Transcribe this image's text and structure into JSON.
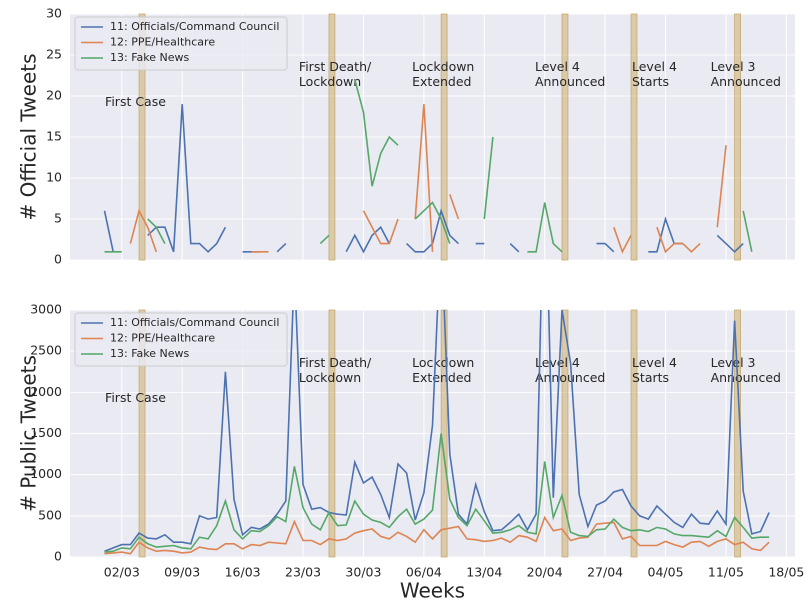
{
  "chart_data": [
    {
      "type": "line",
      "ylabel": "# Official Tweets",
      "x": [
        "29/02",
        "01/03",
        "02/03",
        "03/03",
        "04/03",
        "05/03",
        "06/03",
        "07/03",
        "08/03",
        "09/03",
        "10/03",
        "11/03",
        "12/03",
        "13/03",
        "14/03",
        "15/03",
        "16/03",
        "17/03",
        "18/03",
        "19/03",
        "20/03",
        "21/03",
        "22/03",
        "23/03",
        "24/03",
        "25/03",
        "26/03",
        "27/03",
        "28/03",
        "29/03",
        "30/03",
        "31/03",
        "01/04",
        "02/04",
        "03/04",
        "04/04",
        "05/04",
        "06/04",
        "07/04",
        "08/04",
        "09/04",
        "10/04",
        "11/04",
        "12/04",
        "13/04",
        "14/04",
        "15/04",
        "16/04",
        "17/04",
        "18/04",
        "19/04",
        "20/04",
        "21/04",
        "22/04",
        "23/04",
        "24/04",
        "25/04",
        "26/04",
        "27/04",
        "28/04",
        "29/04",
        "30/04",
        "01/05",
        "02/05",
        "03/05",
        "04/05",
        "05/05",
        "06/05",
        "07/05",
        "08/05",
        "09/05",
        "10/05",
        "11/05",
        "12/05",
        "13/05",
        "14/05",
        "15/05",
        "16/05"
      ],
      "series": [
        {
          "name": "11: Officials/Command Council",
          "color": "#4c72b0",
          "values": [
            6,
            1,
            null,
            null,
            null,
            3,
            4,
            4,
            1,
            19,
            2,
            2,
            1,
            2,
            4,
            null,
            1,
            1,
            1,
            null,
            1,
            2,
            null,
            null,
            null,
            null,
            null,
            null,
            1,
            3,
            1,
            3,
            4,
            2,
            null,
            2,
            1,
            1,
            2,
            6,
            3,
            2,
            null,
            2,
            2,
            null,
            null,
            2,
            1,
            null,
            null,
            null,
            null,
            null,
            null,
            null,
            null,
            2,
            2,
            1,
            null,
            null,
            null,
            1,
            1,
            5,
            2,
            2,
            null,
            null,
            null,
            3,
            2,
            1,
            2,
            null,
            null,
            null
          ]
        },
        {
          "name": "12: PPE/Healthcare",
          "color": "#dd8452",
          "values": [
            null,
            null,
            null,
            2,
            6,
            4,
            1,
            null,
            null,
            null,
            null,
            null,
            null,
            null,
            null,
            null,
            null,
            1,
            1,
            1,
            null,
            null,
            null,
            null,
            null,
            null,
            null,
            null,
            null,
            null,
            6,
            4,
            2,
            2,
            5,
            null,
            5,
            19,
            1,
            null,
            8,
            5,
            null,
            null,
            null,
            null,
            null,
            null,
            null,
            null,
            null,
            null,
            null,
            null,
            null,
            null,
            null,
            null,
            null,
            4,
            1,
            3,
            null,
            null,
            4,
            1,
            2,
            2,
            1,
            2,
            null,
            4,
            14,
            null,
            null,
            null,
            null,
            null
          ]
        },
        {
          "name": "13: Fake News",
          "color": "#55a868",
          "values": [
            1,
            1,
            1,
            null,
            null,
            5,
            4,
            2,
            null,
            null,
            null,
            null,
            null,
            null,
            null,
            null,
            null,
            null,
            null,
            null,
            null,
            null,
            null,
            null,
            null,
            2,
            3,
            null,
            null,
            22,
            18,
            9,
            13,
            15,
            14,
            null,
            5,
            6,
            7,
            5,
            2,
            null,
            null,
            null,
            5,
            15,
            null,
            null,
            null,
            1,
            1,
            7,
            2,
            1,
            null,
            null,
            null,
            null,
            null,
            null,
            null,
            null,
            null,
            null,
            null,
            null,
            null,
            null,
            null,
            null,
            null,
            null,
            null,
            null,
            6,
            1,
            null,
            null
          ]
        }
      ],
      "xlim": [
        "25/02",
        "19/05"
      ],
      "ylim": [
        0,
        30
      ],
      "yticks": [
        0,
        5,
        10,
        15,
        20,
        25,
        30
      ],
      "grid": true,
      "legend": "upper left",
      "events": [
        {
          "date": "04/03",
          "label": "First Case"
        },
        {
          "date": "26/03",
          "label": "First Death/\nLockdown"
        },
        {
          "date": "08/04",
          "label": "Lockdown\nExtended"
        },
        {
          "date": "22/04",
          "label": "Level 4\nAnnounced"
        },
        {
          "date": "30/04",
          "label": "Level 4\nStarts"
        },
        {
          "date": "12/05",
          "label": "Level 3\nAnnounced"
        }
      ]
    },
    {
      "type": "line",
      "ylabel": "# Public Tweets",
      "xlabel": "Weeks",
      "x": [
        "29/02",
        "01/03",
        "02/03",
        "03/03",
        "04/03",
        "05/03",
        "06/03",
        "07/03",
        "08/03",
        "09/03",
        "10/03",
        "11/03",
        "12/03",
        "13/03",
        "14/03",
        "15/03",
        "16/03",
        "17/03",
        "18/03",
        "19/03",
        "20/03",
        "21/03",
        "22/03",
        "23/03",
        "24/03",
        "25/03",
        "26/03",
        "27/03",
        "28/03",
        "29/03",
        "30/03",
        "31/03",
        "01/04",
        "02/04",
        "03/04",
        "04/04",
        "05/04",
        "06/04",
        "07/04",
        "08/04",
        "09/04",
        "10/04",
        "11/04",
        "12/04",
        "13/04",
        "14/04",
        "15/04",
        "16/04",
        "17/04",
        "18/04",
        "19/04",
        "20/04",
        "21/04",
        "22/04",
        "23/04",
        "24/04",
        "25/04",
        "26/04",
        "27/04",
        "28/04",
        "29/04",
        "30/04",
        "01/05",
        "02/05",
        "03/05",
        "04/05",
        "05/05",
        "06/05",
        "07/05",
        "08/05",
        "09/05",
        "10/05",
        "11/05",
        "12/05",
        "13/05",
        "14/05",
        "15/05",
        "16/05"
      ],
      "series": [
        {
          "name": "11: Officials/Command Council",
          "color": "#4c72b0",
          "values": [
            70,
            110,
            150,
            150,
            290,
            230,
            220,
            270,
            180,
            180,
            160,
            500,
            460,
            480,
            2250,
            700,
            270,
            360,
            340,
            400,
            520,
            680,
            3500,
            880,
            580,
            600,
            540,
            520,
            510,
            1150,
            900,
            970,
            760,
            480,
            1130,
            1020,
            450,
            780,
            1600,
            4000,
            1250,
            520,
            400,
            880,
            550,
            320,
            330,
            420,
            520,
            330,
            520,
            5000,
            720,
            3000,
            2350,
            760,
            370,
            630,
            680,
            790,
            820,
            620,
            500,
            460,
            620,
            520,
            420,
            360,
            520,
            410,
            400,
            560,
            400,
            2870,
            800,
            280,
            310,
            540
          ]
        },
        {
          "name": "12: PPE/Healthcare",
          "color": "#dd8452",
          "values": [
            40,
            50,
            60,
            40,
            180,
            110,
            70,
            80,
            70,
            50,
            60,
            120,
            100,
            90,
            160,
            160,
            100,
            150,
            140,
            180,
            170,
            160,
            430,
            200,
            200,
            150,
            220,
            200,
            220,
            290,
            320,
            340,
            250,
            220,
            300,
            250,
            180,
            330,
            220,
            330,
            350,
            370,
            220,
            210,
            190,
            200,
            230,
            180,
            260,
            240,
            190,
            480,
            320,
            340,
            200,
            230,
            240,
            400,
            410,
            420,
            220,
            250,
            140,
            140,
            140,
            190,
            150,
            120,
            180,
            190,
            130,
            190,
            220,
            150,
            180,
            100,
            80,
            180
          ]
        },
        {
          "name": "13: Fake News",
          "color": "#55a868",
          "values": [
            60,
            70,
            110,
            100,
            240,
            160,
            120,
            130,
            140,
            110,
            100,
            240,
            220,
            380,
            680,
            330,
            220,
            320,
            310,
            380,
            490,
            430,
            1100,
            600,
            400,
            330,
            540,
            380,
            390,
            680,
            520,
            450,
            420,
            360,
            490,
            580,
            400,
            460,
            570,
            1500,
            700,
            480,
            380,
            580,
            440,
            290,
            300,
            330,
            380,
            300,
            280,
            1160,
            480,
            750,
            300,
            260,
            250,
            330,
            340,
            460,
            360,
            320,
            330,
            310,
            360,
            340,
            280,
            260,
            260,
            250,
            240,
            320,
            250,
            480,
            360,
            230,
            240,
            240
          ]
        }
      ],
      "xlim": [
        "25/02",
        "19/05"
      ],
      "ylim": [
        0,
        3000
      ],
      "yticks": [
        0,
        500,
        1000,
        1500,
        2000,
        2500,
        3000
      ],
      "xticks": [
        "02/03",
        "09/03",
        "16/03",
        "23/03",
        "30/03",
        "06/04",
        "13/04",
        "20/04",
        "27/04",
        "04/05",
        "11/05",
        "18/05"
      ],
      "grid": true,
      "legend": "upper left",
      "events": [
        {
          "date": "04/03",
          "label": "First Case"
        },
        {
          "date": "26/03",
          "label": "First Death/\nLockdown"
        },
        {
          "date": "08/04",
          "label": "Lockdown\nExtended"
        },
        {
          "date": "22/04",
          "label": "Level 4\nAnnounced"
        },
        {
          "date": "30/04",
          "label": "Level 4\nStarts"
        },
        {
          "date": "12/05",
          "label": "Level 3\nAnnounced"
        }
      ]
    }
  ]
}
